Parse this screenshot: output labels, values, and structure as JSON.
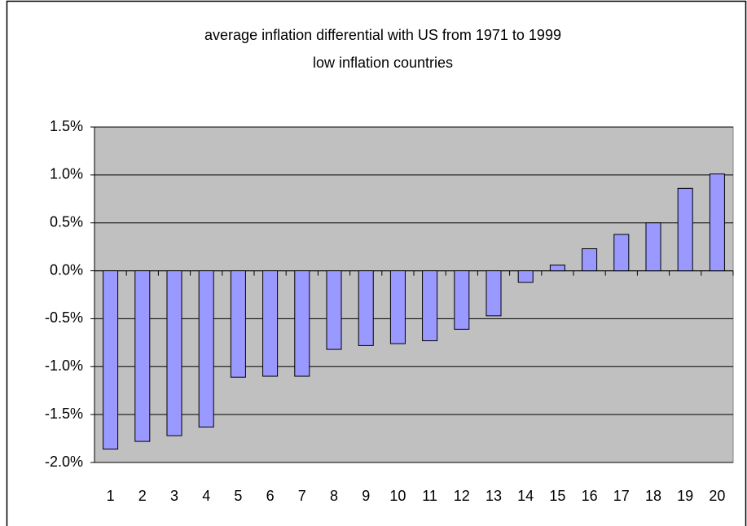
{
  "chart_data": {
    "type": "bar",
    "title": "average inflation differential with US from 1971 to 1999",
    "subtitle": "low inflation countries",
    "categories": [
      "1",
      "2",
      "3",
      "4",
      "5",
      "6",
      "7",
      "8",
      "9",
      "10",
      "11",
      "12",
      "13",
      "14",
      "15",
      "16",
      "17",
      "18",
      "19",
      "20"
    ],
    "values": [
      -1.86,
      -1.78,
      -1.72,
      -1.63,
      -1.11,
      -1.1,
      -1.1,
      -0.82,
      -0.78,
      -0.76,
      -0.73,
      -0.61,
      -0.47,
      -0.12,
      0.06,
      0.23,
      0.38,
      0.5,
      0.86,
      1.01
    ],
    "color": "#9999ff",
    "ylim": [
      -2.0,
      1.5
    ],
    "yticks": [
      {
        "value": -2.0,
        "label": "-2.0%"
      },
      {
        "value": -1.5,
        "label": "-1.5%"
      },
      {
        "value": -1.0,
        "label": "-1.0%"
      },
      {
        "value": -0.5,
        "label": "-0.5%"
      },
      {
        "value": 0.0,
        "label": "0.0%"
      },
      {
        "value": 0.5,
        "label": "0.5%"
      },
      {
        "value": 1.0,
        "label": "1.0%"
      },
      {
        "value": 1.5,
        "label": "1.5%"
      }
    ],
    "grid": true
  }
}
